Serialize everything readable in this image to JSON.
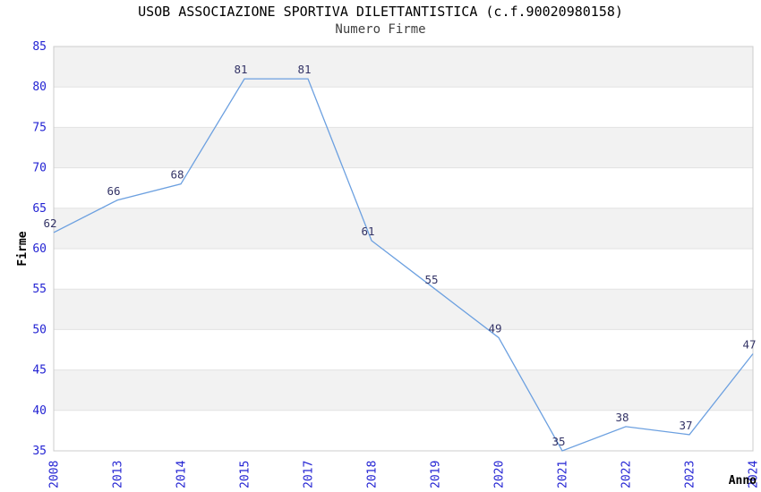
{
  "chart_data": {
    "type": "line",
    "title": "USOB ASSOCIAZIONE SPORTIVA DILETTANTISTICA (c.f.90020980158)",
    "subtitle": "Numero Firme",
    "xlabel": "Anno",
    "ylabel": "Firme",
    "categories": [
      "2008",
      "2013",
      "2014",
      "2015",
      "2017",
      "2018",
      "2019",
      "2020",
      "2021",
      "2022",
      "2023",
      "2024"
    ],
    "values": [
      62,
      66,
      68,
      81,
      81,
      61,
      55,
      49,
      35,
      38,
      37,
      47
    ],
    "ylim": [
      35,
      85
    ],
    "ytick_step": 5,
    "grid": "horizontal-bands-alternating",
    "legend": "none",
    "colors": {
      "line": "#6ca0e0",
      "tick_label": "#2323d3",
      "data_label": "#333366",
      "band": "#f2f2f2",
      "gridline": "#e2e2e2",
      "border": "#cccccc",
      "title": "#000000",
      "subtitle": "#404040",
      "axis_title": "#000000"
    }
  }
}
